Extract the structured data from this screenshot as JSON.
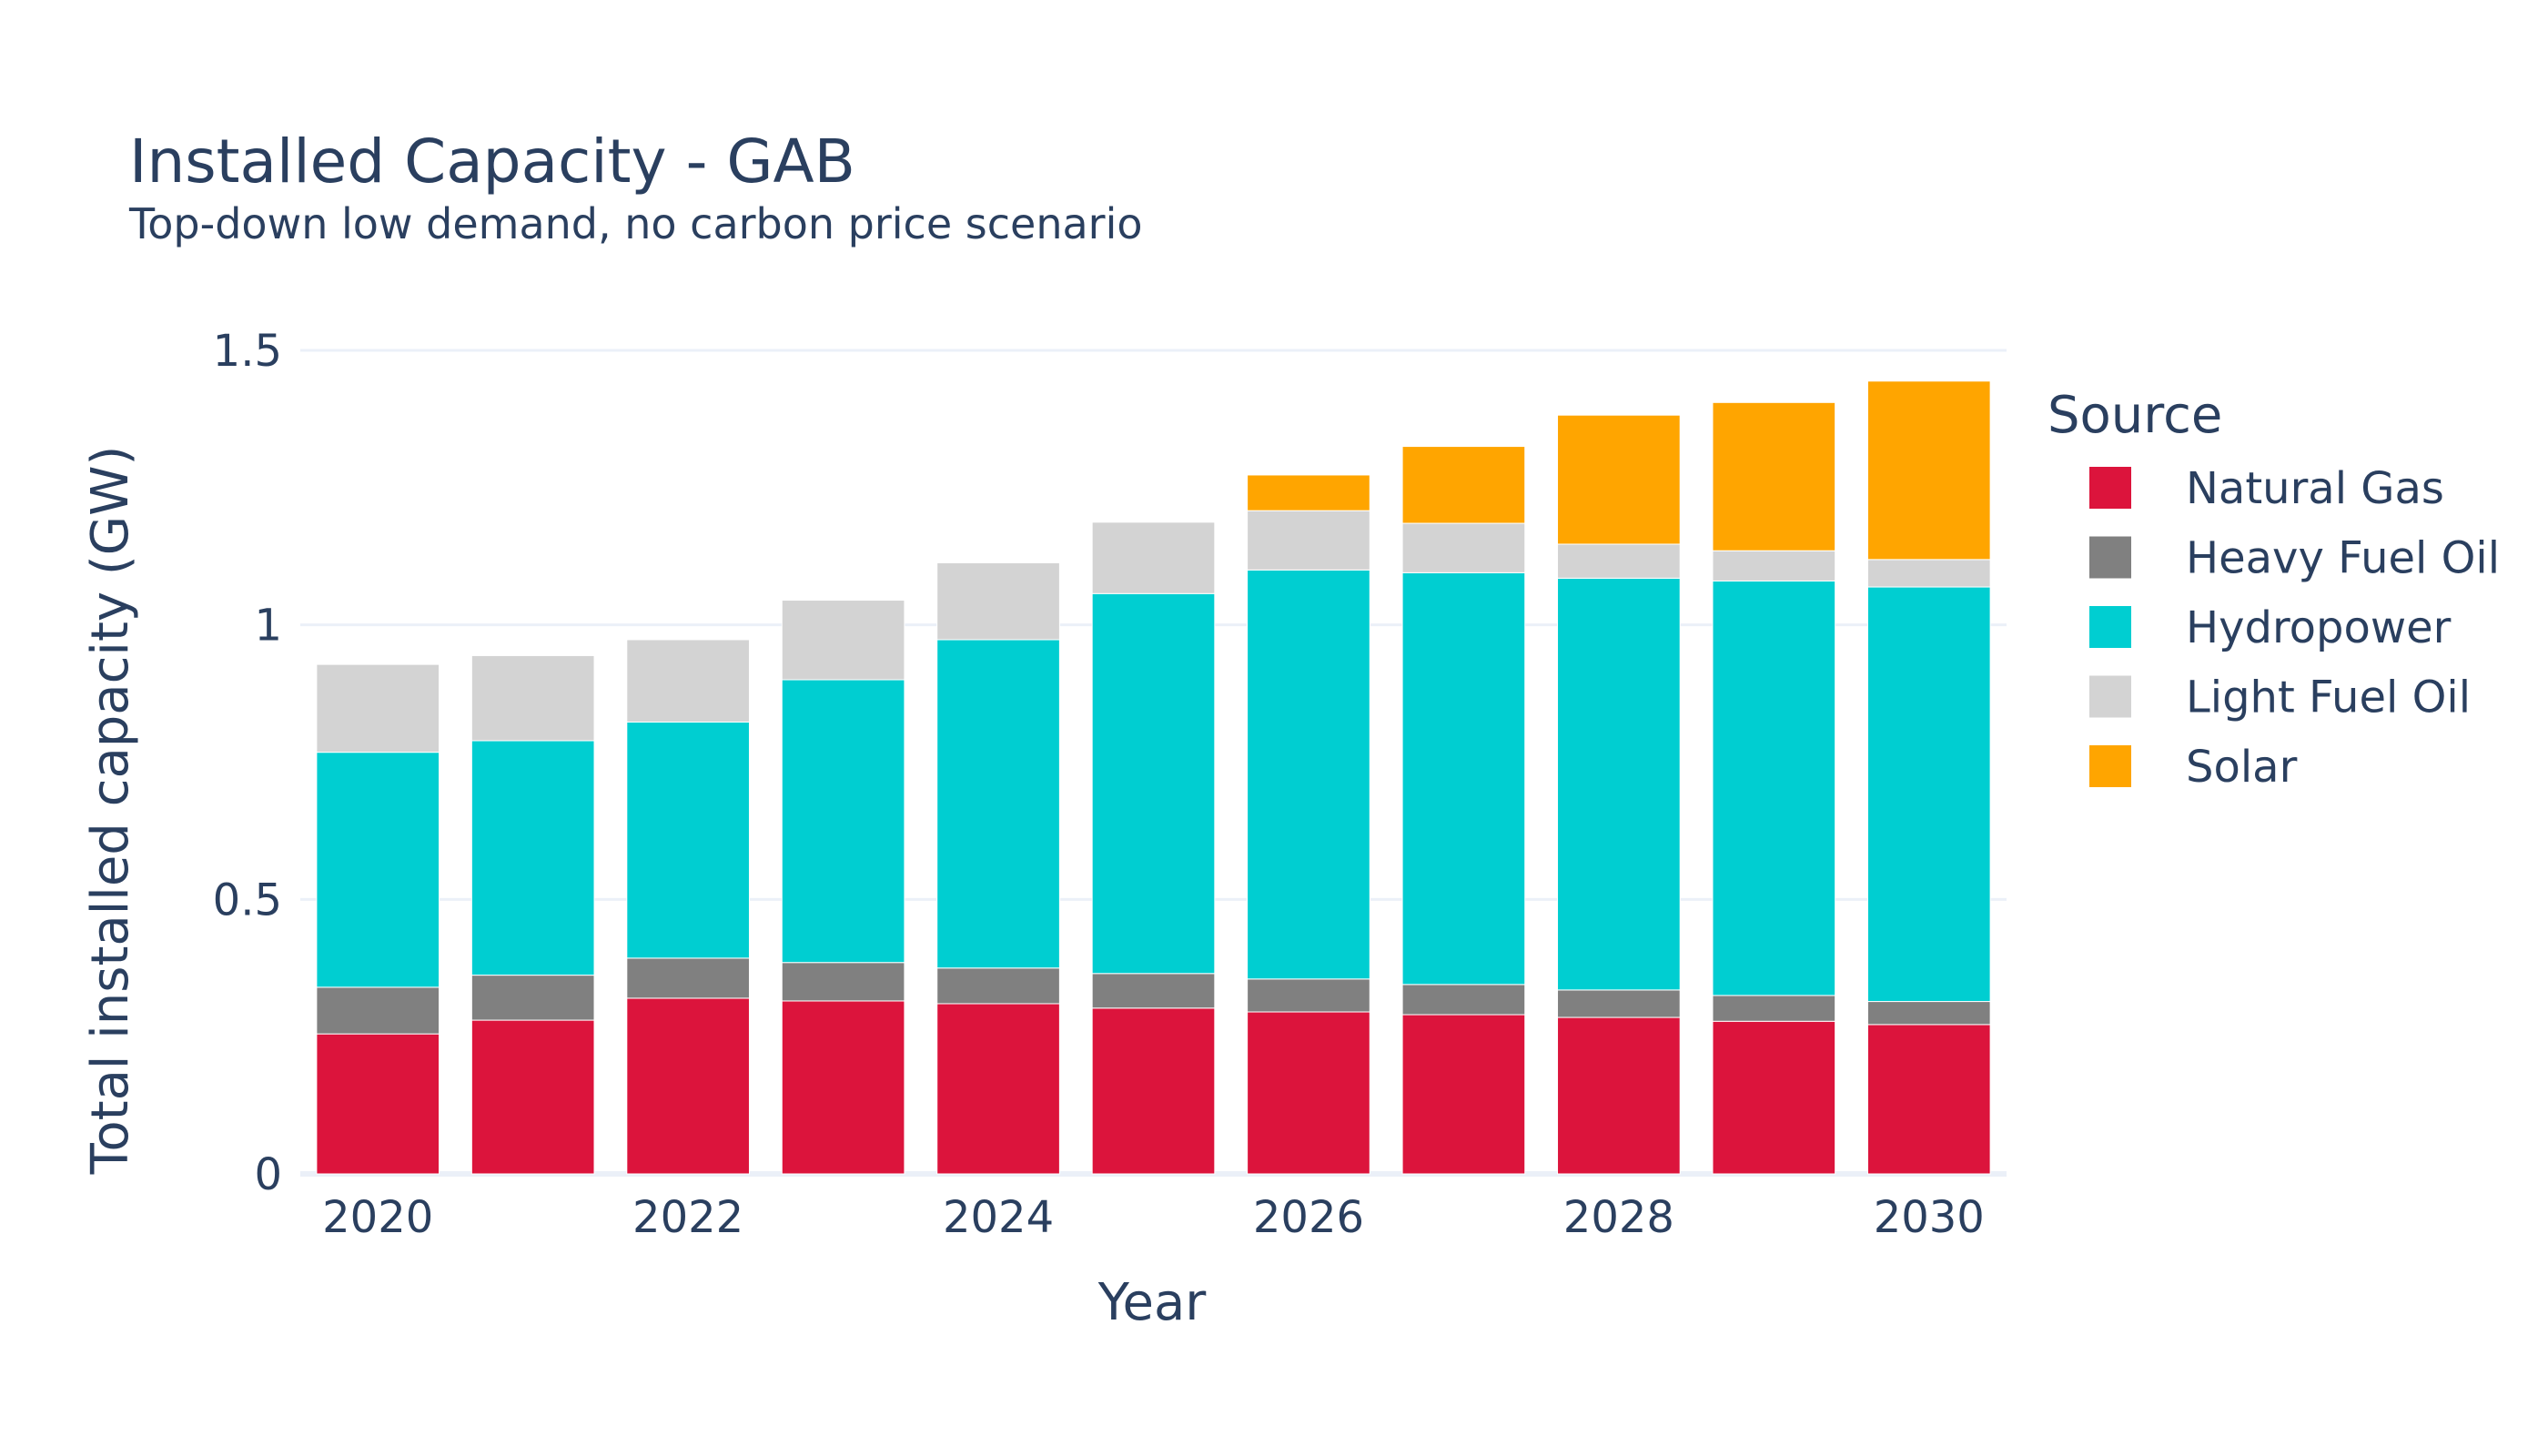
{
  "chart_data": {
    "type": "bar",
    "stacked": true,
    "title": "Installed Capacity - GAB",
    "subtitle": "Top-down low demand, no carbon price scenario",
    "xlabel": "Year",
    "ylabel": "Total installed capacity (GW)",
    "ylim": [
      0,
      1.5
    ],
    "yticks": [
      0,
      0.5,
      1,
      1.5
    ],
    "ytick_labels": [
      "0",
      "0.5",
      "1",
      "1.5"
    ],
    "xticks": [
      2020,
      2022,
      2024,
      2026,
      2028,
      2030
    ],
    "xtick_labels": [
      "2020",
      "2022",
      "2024",
      "2026",
      "2028",
      "2030"
    ],
    "categories": [
      2020,
      2021,
      2022,
      2023,
      2024,
      2025,
      2026,
      2027,
      2028,
      2029,
      2030
    ],
    "grid": true,
    "legend": {
      "title": "Source",
      "placement": "right"
    },
    "series": [
      {
        "name": "Natural Gas",
        "color": "#DC143C",
        "values": [
          0.255,
          0.28,
          0.32,
          0.315,
          0.31,
          0.302,
          0.295,
          0.29,
          0.285,
          0.278,
          0.272
        ]
      },
      {
        "name": "Heavy Fuel Oil",
        "color": "#808080",
        "values": [
          0.085,
          0.082,
          0.073,
          0.07,
          0.065,
          0.063,
          0.06,
          0.055,
          0.05,
          0.047,
          0.042
        ]
      },
      {
        "name": "Hydropower",
        "color": "#00CED1",
        "values": [
          0.428,
          0.427,
          0.43,
          0.515,
          0.598,
          0.692,
          0.745,
          0.75,
          0.75,
          0.755,
          0.755
        ]
      },
      {
        "name": "Light Fuel Oil",
        "color": "#D3D3D3",
        "values": [
          0.16,
          0.155,
          0.15,
          0.145,
          0.14,
          0.13,
          0.108,
          0.09,
          0.062,
          0.055,
          0.05
        ]
      },
      {
        "name": "Solar",
        "color": "#FFA500",
        "values": [
          0,
          0,
          0,
          0,
          0,
          0,
          0.065,
          0.14,
          0.235,
          0.27,
          0.325
        ]
      }
    ]
  }
}
